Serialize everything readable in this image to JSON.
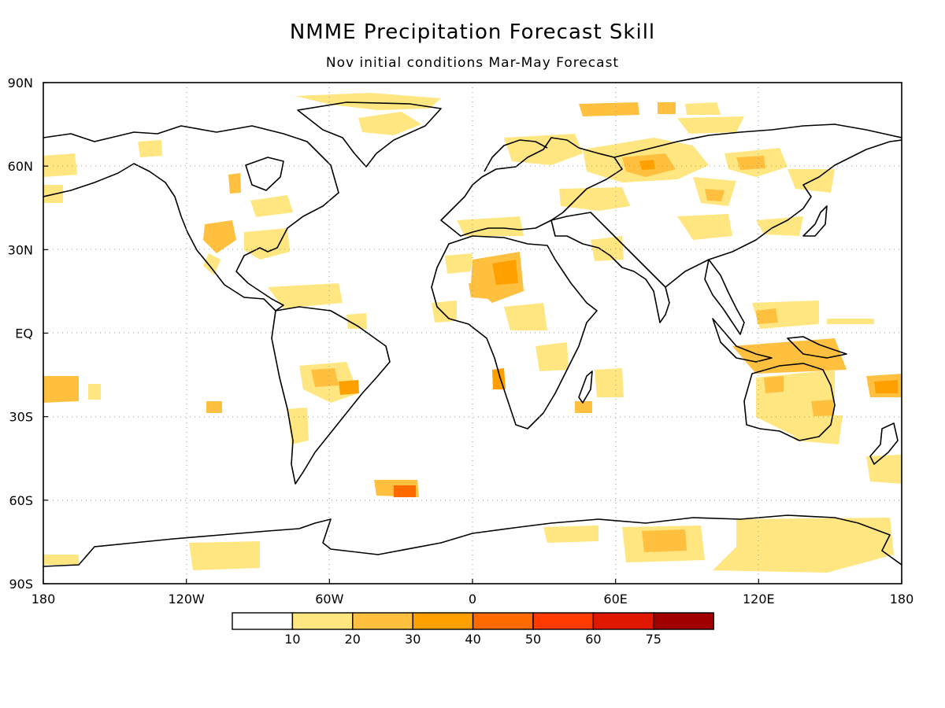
{
  "title": "NMME Precipitation Forecast Skill",
  "subtitle": "Nov initial conditions   Mar-May Forecast",
  "axes": {
    "lon_labels": [
      "180",
      "120W",
      "60W",
      "0",
      "60E",
      "120E",
      "180"
    ],
    "lat_labels": [
      "90N",
      "60N",
      "30N",
      "EQ",
      "30S",
      "60S",
      "90S"
    ],
    "lon_values": [
      -180,
      -120,
      -60,
      0,
      60,
      120,
      180
    ],
    "lat_values": [
      90,
      60,
      30,
      0,
      -30,
      -60,
      -90
    ],
    "grid": true
  },
  "colorbar": {
    "labels": [
      "10",
      "20",
      "30",
      "40",
      "50",
      "60",
      "75"
    ],
    "colors": [
      "#ffffff",
      "#ffe680",
      "#ffc040",
      "#ffa000",
      "#ff6a00",
      "#ff3a00",
      "#e01800",
      "#a00000"
    ]
  },
  "colors": {
    "coastline": "#000000",
    "grid": "#999999"
  }
}
